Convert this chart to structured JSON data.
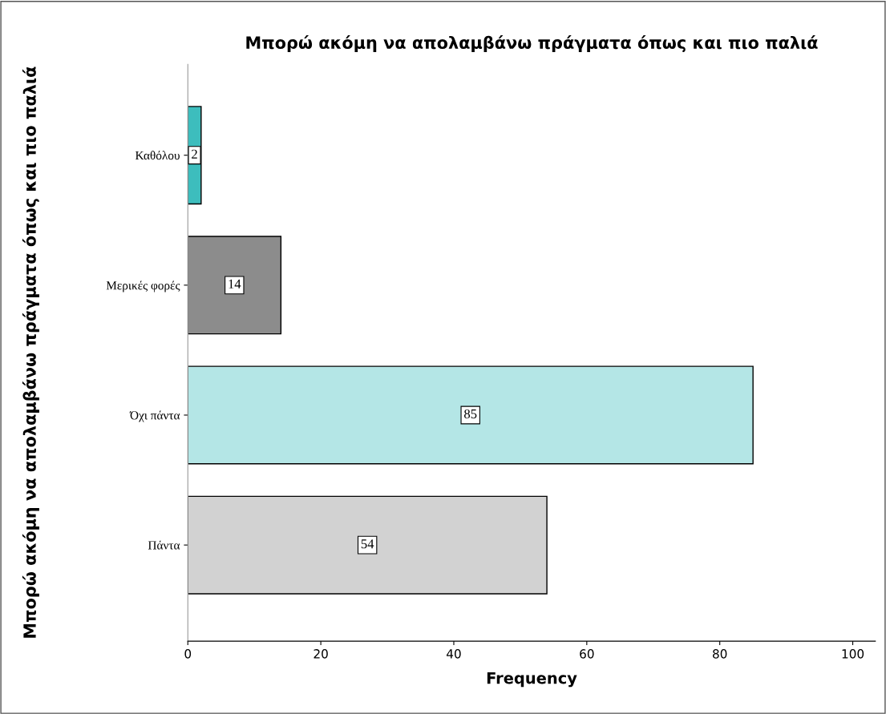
{
  "chart_data": {
    "type": "bar",
    "orientation": "horizontal",
    "title": "Μπορώ ακόμη να απολαμβάνω πράγματα όπως και πιο παλιά",
    "ylabel": "Μπορώ ακόμη να απολαμβάνω πράγματα όπως και πιο παλιά",
    "xlabel": "Frequency",
    "categories": [
      "Καθόλου",
      "Μερικές φορές",
      "Όχι πάντα",
      "Πάντα"
    ],
    "values": [
      2,
      14,
      85,
      54
    ],
    "colors": [
      "#3dbdbd",
      "#8c8c8c",
      "#b4e6e6",
      "#d2d2d2"
    ],
    "xlim": [
      0,
      103.4
    ],
    "xticks": [
      0,
      20,
      40,
      60,
      80,
      100
    ],
    "data_labels": true,
    "grid": false,
    "legend": false
  }
}
